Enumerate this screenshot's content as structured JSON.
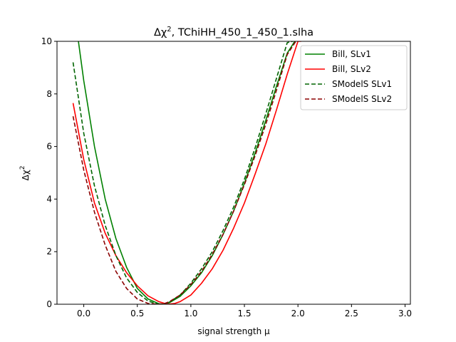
{
  "chart_data": {
    "type": "line",
    "title_prefix": "Δχ",
    "title_sup": "2",
    "title_suffix": ", TChiHH_450_1_450_1.slha",
    "xlabel": "signal strength μ",
    "ylabel_main": "Δχ",
    "ylabel_sup": "2",
    "xlim": [
      -0.25,
      3.05
    ],
    "ylim": [
      0,
      10
    ],
    "xticks": [
      0.0,
      0.5,
      1.0,
      1.5,
      2.0,
      2.5,
      3.0
    ],
    "xtick_labels": [
      "0.0",
      "0.5",
      "1.0",
      "1.5",
      "2.0",
      "2.5",
      "3.0"
    ],
    "yticks": [
      0,
      2,
      4,
      6,
      8,
      10
    ],
    "ytick_labels": [
      "0",
      "2",
      "4",
      "6",
      "8",
      "10"
    ],
    "grid": false,
    "legend_position": "top-right",
    "series": [
      {
        "name": "Bill, SLv1",
        "color": "#008000",
        "dash": "solid",
        "x": [
          -0.05,
          0.0,
          0.1,
          0.2,
          0.3,
          0.4,
          0.5,
          0.6,
          0.7,
          0.75,
          0.8,
          0.9,
          1.0,
          1.1,
          1.2,
          1.3,
          1.4,
          1.5,
          1.6,
          1.7,
          1.8,
          1.9,
          1.97
        ],
        "y": [
          10.0,
          8.5,
          6.0,
          4.0,
          2.5,
          1.4,
          0.6,
          0.2,
          0.02,
          0.0,
          0.06,
          0.3,
          0.7,
          1.2,
          1.85,
          2.65,
          3.55,
          4.6,
          5.75,
          7.0,
          8.3,
          9.55,
          10.0
        ]
      },
      {
        "name": "Bill, SLv2",
        "color": "#ff0000",
        "dash": "solid",
        "x": [
          -0.1,
          0.0,
          0.1,
          0.2,
          0.3,
          0.4,
          0.5,
          0.6,
          0.7,
          0.78,
          0.85,
          0.9,
          1.0,
          1.1,
          1.2,
          1.3,
          1.4,
          1.5,
          1.6,
          1.7,
          1.8,
          1.9,
          2.0,
          2.03
        ],
        "y": [
          7.65,
          5.5,
          3.85,
          2.7,
          1.85,
          1.2,
          0.7,
          0.32,
          0.1,
          0.0,
          0.03,
          0.1,
          0.35,
          0.8,
          1.35,
          2.05,
          2.9,
          3.85,
          4.95,
          6.1,
          7.4,
          8.75,
          10.0,
          10.0
        ]
      },
      {
        "name": "SModelS SLv1",
        "color": "#006400",
        "dash": "dashed",
        "x": [
          -0.1,
          0.0,
          0.1,
          0.2,
          0.3,
          0.4,
          0.5,
          0.6,
          0.7,
          0.75,
          0.8,
          0.9,
          1.0,
          1.1,
          1.2,
          1.3,
          1.4,
          1.5,
          1.6,
          1.7,
          1.8,
          1.9,
          1.95
        ],
        "y": [
          9.2,
          6.5,
          4.5,
          3.0,
          1.85,
          1.0,
          0.45,
          0.12,
          0.0,
          0.0,
          0.08,
          0.35,
          0.8,
          1.35,
          2.0,
          2.8,
          3.7,
          4.75,
          5.95,
          7.25,
          8.6,
          9.95,
          10.0
        ]
      },
      {
        "name": "SModelS SLv2",
        "color": "#8b0000",
        "dash": "dashed",
        "x": [
          -0.1,
          0.0,
          0.1,
          0.2,
          0.3,
          0.4,
          0.5,
          0.6,
          0.7,
          0.75,
          0.8,
          0.9,
          1.0,
          1.1,
          1.2,
          1.3,
          1.4,
          1.5,
          1.6,
          1.7,
          1.8,
          1.9,
          1.98
        ],
        "y": [
          7.15,
          5.1,
          3.5,
          2.25,
          1.25,
          0.6,
          0.2,
          0.03,
          0.0,
          0.02,
          0.1,
          0.35,
          0.75,
          1.25,
          1.9,
          2.65,
          3.55,
          4.55,
          5.65,
          6.85,
          8.15,
          9.5,
          10.0
        ]
      }
    ]
  }
}
